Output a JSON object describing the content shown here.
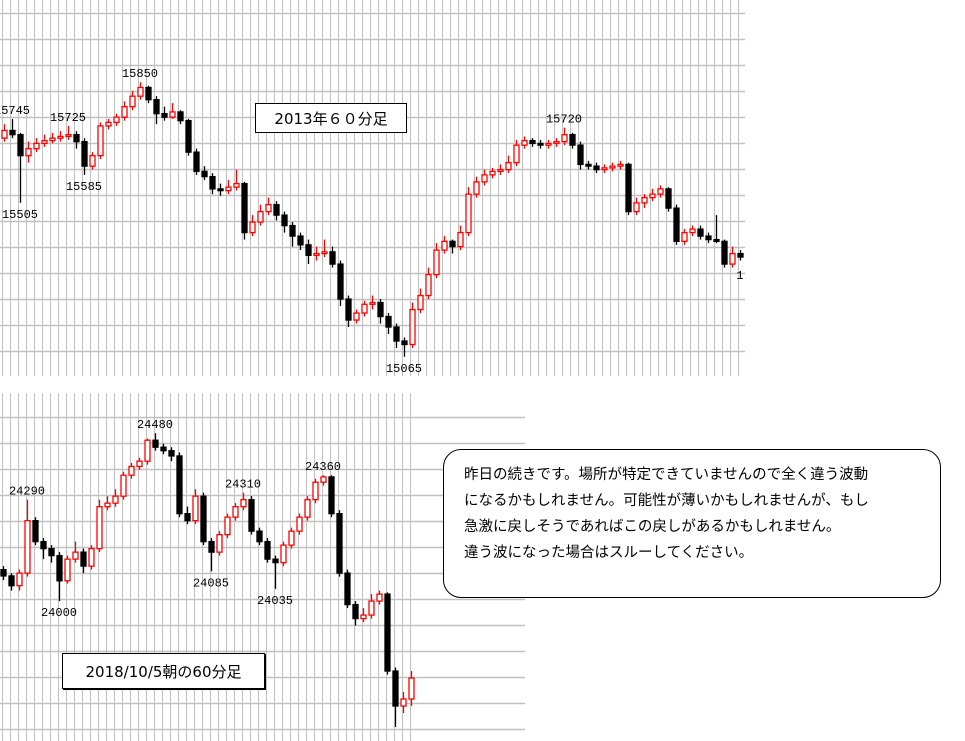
{
  "chart_data": [
    {
      "type": "candlestick",
      "title": "2013年６０分足",
      "ylim": [
        15010,
        16085
      ],
      "grid": true,
      "colors": {
        "up": "#ff0000",
        "down": "#000000",
        "grid": "#c0c0c0"
      },
      "candles": [
        [
          15690,
          15730,
          15680,
          15712
        ],
        [
          15712,
          15745,
          15690,
          15700
        ],
        [
          15700,
          15705,
          15505,
          15640
        ],
        [
          15640,
          15680,
          15620,
          15660
        ],
        [
          15660,
          15690,
          15650,
          15675
        ],
        [
          15675,
          15700,
          15665,
          15683
        ],
        [
          15683,
          15705,
          15675,
          15690
        ],
        [
          15690,
          15710,
          15680,
          15695
        ],
        [
          15695,
          15725,
          15685,
          15700
        ],
        [
          15700,
          15710,
          15660,
          15680
        ],
        [
          15680,
          15690,
          15585,
          15610
        ],
        [
          15610,
          15650,
          15600,
          15640
        ],
        [
          15640,
          15735,
          15630,
          15725
        ],
        [
          15725,
          15745,
          15715,
          15735
        ],
        [
          15735,
          15760,
          15725,
          15750
        ],
        [
          15750,
          15795,
          15740,
          15780
        ],
        [
          15780,
          15825,
          15770,
          15810
        ],
        [
          15810,
          15850,
          15800,
          15835
        ],
        [
          15835,
          15840,
          15790,
          15800
        ],
        [
          15800,
          15810,
          15730,
          15760
        ],
        [
          15760,
          15780,
          15740,
          15750
        ],
        [
          15750,
          15790,
          15745,
          15765
        ],
        [
          15765,
          15770,
          15730,
          15740
        ],
        [
          15740,
          15745,
          15640,
          15650
        ],
        [
          15650,
          15660,
          15585,
          15595
        ],
        [
          15595,
          15610,
          15570,
          15580
        ],
        [
          15580,
          15590,
          15530,
          15545
        ],
        [
          15545,
          15560,
          15525,
          15540
        ],
        [
          15540,
          15570,
          15530,
          15550
        ],
        [
          15550,
          15600,
          15540,
          15560
        ],
        [
          15560,
          15565,
          15400,
          15420
        ],
        [
          15420,
          15470,
          15410,
          15450
        ],
        [
          15450,
          15500,
          15440,
          15480
        ],
        [
          15480,
          15520,
          15470,
          15500
        ],
        [
          15500,
          15510,
          15455,
          15470
        ],
        [
          15470,
          15480,
          15420,
          15440
        ],
        [
          15440,
          15450,
          15380,
          15410
        ],
        [
          15410,
          15420,
          15370,
          15385
        ],
        [
          15385,
          15400,
          15330,
          15355
        ],
        [
          15355,
          15380,
          15340,
          15360
        ],
        [
          15360,
          15400,
          15350,
          15365
        ],
        [
          15365,
          15380,
          15320,
          15330
        ],
        [
          15330,
          15340,
          15210,
          15230
        ],
        [
          15230,
          15240,
          15150,
          15170
        ],
        [
          15170,
          15200,
          15160,
          15190
        ],
        [
          15190,
          15225,
          15180,
          15215
        ],
        [
          15215,
          15240,
          15200,
          15220
        ],
        [
          15220,
          15230,
          15160,
          15180
        ],
        [
          15180,
          15190,
          15130,
          15150
        ],
        [
          15150,
          15160,
          15090,
          15110
        ],
        [
          15110,
          15120,
          15065,
          15100
        ],
        [
          15100,
          15220,
          15090,
          15200
        ],
        [
          15200,
          15260,
          15190,
          15240
        ],
        [
          15240,
          15320,
          15230,
          15300
        ],
        [
          15300,
          15390,
          15290,
          15370
        ],
        [
          15370,
          15410,
          15360,
          15395
        ],
        [
          15395,
          15400,
          15360,
          15380
        ],
        [
          15380,
          15440,
          15370,
          15420
        ],
        [
          15420,
          15550,
          15410,
          15530
        ],
        [
          15530,
          15580,
          15520,
          15565
        ],
        [
          15565,
          15600,
          15555,
          15585
        ],
        [
          15585,
          15605,
          15575,
          15595
        ],
        [
          15595,
          15615,
          15585,
          15600
        ],
        [
          15600,
          15640,
          15590,
          15620
        ],
        [
          15620,
          15685,
          15610,
          15670
        ],
        [
          15670,
          15695,
          15660,
          15683
        ],
        [
          15683,
          15690,
          15665,
          15675
        ],
        [
          15675,
          15685,
          15660,
          15670
        ],
        [
          15670,
          15685,
          15660,
          15675
        ],
        [
          15675,
          15690,
          15665,
          15680
        ],
        [
          15680,
          15720,
          15670,
          15700
        ],
        [
          15700,
          15705,
          15660,
          15670
        ],
        [
          15670,
          15680,
          15600,
          15615
        ],
        [
          15615,
          15625,
          15600,
          15610
        ],
        [
          15610,
          15620,
          15590,
          15600
        ],
        [
          15600,
          15615,
          15590,
          15605
        ],
        [
          15605,
          15620,
          15595,
          15610
        ],
        [
          15610,
          15625,
          15600,
          15615
        ],
        [
          15615,
          15620,
          15470,
          15480
        ],
        [
          15480,
          15520,
          15470,
          15505
        ],
        [
          15505,
          15530,
          15490,
          15520
        ],
        [
          15520,
          15545,
          15510,
          15530
        ],
        [
          15530,
          15555,
          15520,
          15545
        ],
        [
          15545,
          15550,
          15480,
          15490
        ],
        [
          15490,
          15500,
          15385,
          15395
        ],
        [
          15395,
          15430,
          15385,
          15420
        ],
        [
          15420,
          15440,
          15410,
          15430
        ],
        [
          15430,
          15440,
          15400,
          15410
        ],
        [
          15410,
          15420,
          15390,
          15400
        ],
        [
          15400,
          15470,
          15390,
          15395
        ],
        [
          15395,
          15400,
          15320,
          15330
        ],
        [
          15330,
          15380,
          15320,
          15360
        ],
        [
          15360,
          15370,
          15340,
          15350
        ]
      ],
      "annotations": [
        {
          "text": "15745",
          "index": 1,
          "price": 15745,
          "pos": "above"
        },
        {
          "text": "15505",
          "index": 2,
          "price": 15505,
          "pos": "below"
        },
        {
          "text": "15725",
          "index": 8,
          "price": 15725,
          "pos": "above"
        },
        {
          "text": "15585",
          "index": 10,
          "price": 15585,
          "pos": "below"
        },
        {
          "text": "15850",
          "index": 17,
          "price": 15850,
          "pos": "above"
        },
        {
          "text": "15065",
          "index": 50,
          "price": 15065,
          "pos": "below"
        },
        {
          "text": "15720",
          "index": 70,
          "price": 15720,
          "pos": "above"
        },
        {
          "text": "1",
          "index": 92,
          "price": 15330,
          "pos": "below"
        }
      ]
    },
    {
      "type": "candlestick",
      "title": "2018/10/5朝の60分足",
      "ylim": [
        23600,
        24595
      ],
      "grid": true,
      "colors": {
        "up": "#ff0000",
        "down": "#000000",
        "grid": "#c0c0c0"
      },
      "candles": [
        [
          24090,
          24100,
          24060,
          24072
        ],
        [
          24072,
          24080,
          24030,
          24044
        ],
        [
          24044,
          24090,
          24030,
          24080
        ],
        [
          24080,
          24290,
          24070,
          24230
        ],
        [
          24230,
          24240,
          24160,
          24170
        ],
        [
          24170,
          24180,
          24120,
          24150
        ],
        [
          24150,
          24160,
          24110,
          24130
        ],
        [
          24130,
          24140,
          24000,
          24058
        ],
        [
          24058,
          24130,
          24050,
          24120
        ],
        [
          24120,
          24170,
          24110,
          24140
        ],
        [
          24140,
          24150,
          24080,
          24100
        ],
        [
          24100,
          24160,
          24090,
          24150
        ],
        [
          24150,
          24290,
          24140,
          24270
        ],
        [
          24270,
          24300,
          24260,
          24280
        ],
        [
          24280,
          24320,
          24270,
          24300
        ],
        [
          24300,
          24370,
          24290,
          24360
        ],
        [
          24360,
          24395,
          24350,
          24385
        ],
        [
          24385,
          24410,
          24375,
          24400
        ],
        [
          24400,
          24465,
          24390,
          24460
        ],
        [
          24460,
          24480,
          24430,
          24440
        ],
        [
          24440,
          24450,
          24420,
          24430
        ],
        [
          24430,
          24440,
          24400,
          24415
        ],
        [
          24415,
          24425,
          24240,
          24250
        ],
        [
          24250,
          24270,
          24220,
          24230
        ],
        [
          24230,
          24320,
          24220,
          24300
        ],
        [
          24300,
          24310,
          24160,
          24170
        ],
        [
          24170,
          24180,
          24085,
          24140
        ],
        [
          24140,
          24200,
          24130,
          24190
        ],
        [
          24190,
          24250,
          24180,
          24240
        ],
        [
          24240,
          24280,
          24230,
          24270
        ],
        [
          24270,
          24310,
          24260,
          24290
        ],
        [
          24290,
          24300,
          24190,
          24200
        ],
        [
          24200,
          24210,
          24160,
          24170
        ],
        [
          24170,
          24180,
          24110,
          24120
        ],
        [
          24120,
          24130,
          24035,
          24110
        ],
        [
          24110,
          24170,
          24100,
          24160
        ],
        [
          24160,
          24210,
          24150,
          24200
        ],
        [
          24200,
          24250,
          24190,
          24240
        ],
        [
          24240,
          24300,
          24230,
          24290
        ],
        [
          24290,
          24350,
          24280,
          24340
        ],
        [
          24340,
          24360,
          24330,
          24355
        ],
        [
          24355,
          24360,
          24240,
          24250
        ],
        [
          24250,
          24260,
          24070,
          24080
        ],
        [
          24080,
          24090,
          23980,
          23990
        ],
        [
          23990,
          24000,
          23930,
          23950
        ],
        [
          23950,
          23980,
          23940,
          23960
        ],
        [
          23960,
          24020,
          23950,
          24000
        ],
        [
          24000,
          24030,
          23990,
          24020
        ],
        [
          24020,
          24025,
          23790,
          23800
        ],
        [
          23800,
          23810,
          23640,
          23700
        ],
        [
          23700,
          23740,
          23680,
          23720
        ],
        [
          23720,
          23800,
          23700,
          23780
        ]
      ],
      "annotations": [
        {
          "text": "24290",
          "index": 3,
          "price": 24290,
          "pos": "above"
        },
        {
          "text": "24000",
          "index": 7,
          "price": 24000,
          "pos": "below"
        },
        {
          "text": "24480",
          "index": 19,
          "price": 24480,
          "pos": "above"
        },
        {
          "text": "24085",
          "index": 26,
          "price": 24085,
          "pos": "below"
        },
        {
          "text": "24310",
          "index": 30,
          "price": 24310,
          "pos": "above"
        },
        {
          "text": "24035",
          "index": 34,
          "price": 24035,
          "pos": "below"
        },
        {
          "text": "24360",
          "index": 40,
          "price": 24360,
          "pos": "above"
        }
      ]
    }
  ],
  "note": {
    "lines": [
      "昨日の続きです。場所が特定できていませんので全く違う波動",
      "になるかもしれません。可能性が薄いかもしれませんが、もし",
      "急激に戻しそうであればこの戻しがあるかもしれません。",
      "違う波になった場合はスルーしてください。"
    ]
  }
}
